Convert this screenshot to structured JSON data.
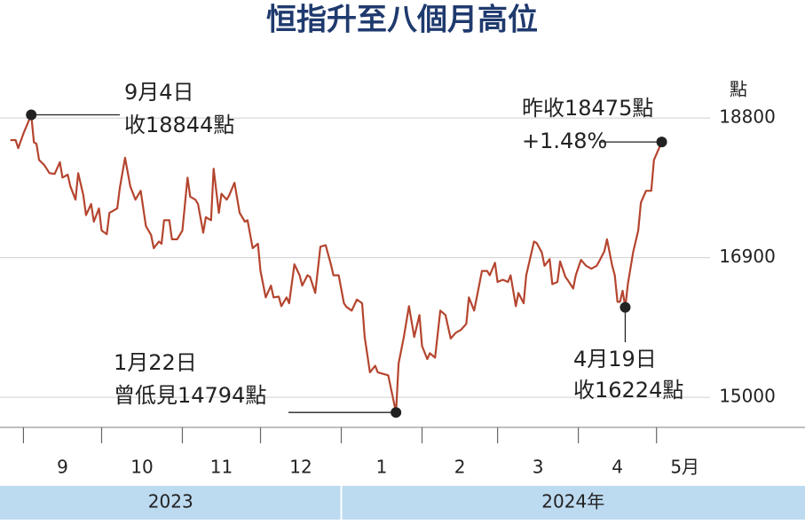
{
  "chart_data": {
    "type": "line",
    "title": "恒指升至八個月高位",
    "y_unit": "點",
    "x": [
      -5,
      -3,
      -2,
      0,
      3,
      4,
      5,
      6,
      8,
      10,
      12,
      14,
      15,
      17,
      18,
      20,
      21,
      23,
      24,
      26,
      27,
      29,
      30,
      32,
      33,
      36,
      37,
      39,
      41,
      43,
      45,
      47,
      49,
      50,
      52,
      53,
      54,
      56,
      57,
      59,
      61,
      63,
      64,
      66,
      67,
      69,
      70,
      72,
      73,
      75,
      76,
      78,
      79,
      81,
      83,
      85,
      86,
      88,
      90,
      91,
      93,
      95,
      96,
      98,
      99,
      101,
      102,
      104,
      106,
      107,
      109,
      110,
      112,
      114,
      116,
      118,
      119,
      121,
      123,
      124,
      126,
      128,
      130,
      131,
      133,
      135,
      136,
      140,
      143,
      144,
      146,
      148,
      150,
      152,
      153,
      155,
      156,
      158,
      160,
      162,
      164,
      166,
      168,
      170,
      171,
      173,
      174,
      176,
      178,
      179,
      181,
      182,
      184,
      186,
      187,
      189,
      190,
      192,
      193,
      196,
      197,
      199,
      200,
      202,
      203,
      205,
      206,
      208,
      209,
      211,
      212,
      214,
      216,
      218,
      220,
      221,
      223,
      224,
      226,
      227,
      228,
      229,
      230,
      231,
      232,
      234,
      236,
      237,
      239,
      241,
      242,
      245
    ],
    "series": [
      {
        "color": "#b5452f",
        "values": [
          18500,
          18500,
          18390,
          18590,
          18844,
          18470,
          18450,
          18230,
          18160,
          18050,
          18040,
          18200,
          17990,
          18030,
          17870,
          17690,
          18050,
          17750,
          17480,
          17630,
          17390,
          17570,
          17270,
          17220,
          17510,
          17570,
          17850,
          18260,
          17870,
          17690,
          17810,
          17330,
          17210,
          17030,
          17120,
          17090,
          17410,
          17410,
          17150,
          17150,
          17270,
          17990,
          17730,
          17690,
          17630,
          17240,
          17450,
          17410,
          18110,
          17510,
          17770,
          17690,
          17750,
          17920,
          17510,
          17390,
          17410,
          17030,
          17090,
          16720,
          16360,
          16520,
          16360,
          16370,
          16240,
          16360,
          16280,
          16810,
          16660,
          16520,
          16660,
          16640,
          16420,
          17050,
          17070,
          16810,
          16660,
          16660,
          16280,
          16230,
          16180,
          16330,
          16280,
          15820,
          15340,
          15430,
          15340,
          15300,
          14794,
          15460,
          15820,
          16240,
          15820,
          16120,
          15700,
          15520,
          15600,
          15540,
          16180,
          16120,
          15800,
          15880,
          15920,
          16000,
          16360,
          16180,
          16360,
          16720,
          16720,
          16660,
          16830,
          16570,
          16600,
          16570,
          16660,
          16240,
          16420,
          16280,
          16660,
          17120,
          17100,
          16970,
          16790,
          16880,
          16540,
          16570,
          16850,
          16640,
          16590,
          16480,
          16660,
          16870,
          16790,
          16750,
          16790,
          16850,
          16990,
          17150,
          16790,
          16660,
          16300,
          16300,
          16450,
          16224,
          16540,
          16970,
          17270,
          17650,
          17810,
          17810,
          18230,
          18475
        ]
      }
    ],
    "xlim": [
      -9,
      300
    ],
    "xticks": [
      {
        "value": 0,
        "label": "9"
      },
      {
        "value": 30,
        "label": "10"
      },
      {
        "value": 61,
        "label": "11"
      },
      {
        "value": 91,
        "label": "12"
      },
      {
        "value": 122,
        "label": "1"
      },
      {
        "value": 153,
        "label": "2"
      },
      {
        "value": 182,
        "label": "3"
      },
      {
        "value": 213,
        "label": "4"
      },
      {
        "value": 243,
        "label": "5月"
      }
    ],
    "year_bands": [
      {
        "label": "2023",
        "from": -9,
        "to": 122
      },
      {
        "label": "2024年",
        "from": 122,
        "to": 300
      }
    ],
    "ylim": [
      14000,
      19200
    ],
    "yticks": [
      15000,
      16900,
      18800
    ],
    "grid": true,
    "annotations": [
      {
        "lines": [
          "9月4日",
          "收18844點"
        ]
      },
      {
        "lines": [
          "1月22日",
          "曾低見14794點"
        ]
      },
      {
        "lines": [
          "昨收18475點",
          "+1.48%"
        ]
      },
      {
        "lines": [
          "4月19日",
          "收16224點"
        ]
      }
    ]
  }
}
